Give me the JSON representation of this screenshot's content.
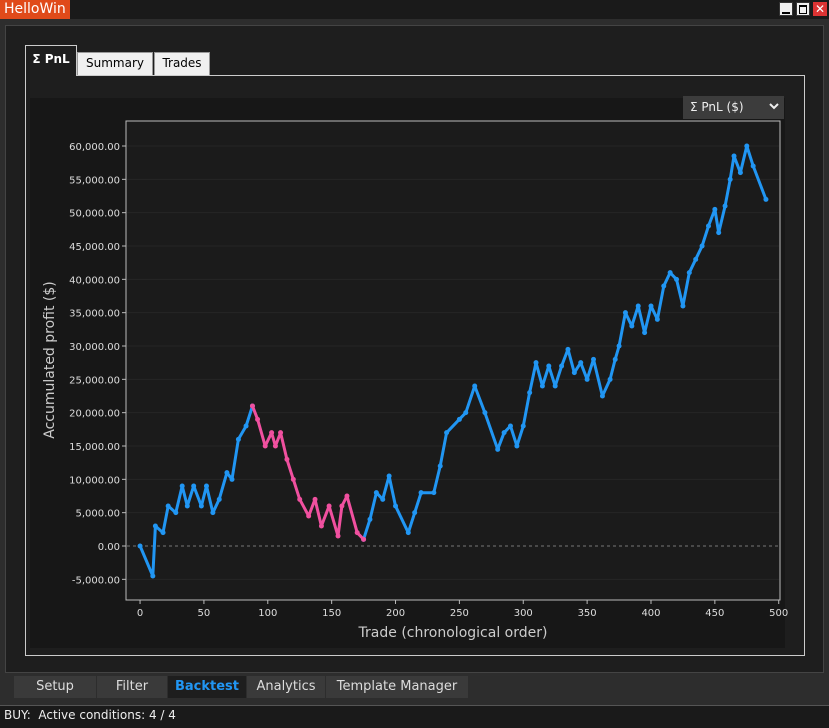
{
  "window": {
    "title": "HelloWin"
  },
  "tabs": [
    "Σ PnL",
    "Summary",
    "Trades"
  ],
  "dropdown": "Σ PnL ($)",
  "bottom_tabs": [
    "Setup",
    "Filter",
    "Backtest",
    "Analytics",
    "Template Manager"
  ],
  "status": "BUY:  Active conditions: 4 / 4",
  "chart_data": {
    "type": "line",
    "x_label": "Trade (chronological order)",
    "y_label": "Accumulated profit ($)",
    "x": [
      0,
      10,
      12,
      18,
      22,
      28,
      33,
      37,
      42,
      48,
      52,
      57,
      62,
      68,
      72,
      77,
      83,
      88,
      92,
      98,
      103,
      106,
      110,
      115,
      120,
      125,
      132,
      137,
      142,
      148,
      155,
      158,
      162,
      170,
      175,
      180,
      185,
      190,
      195,
      200,
      210,
      215,
      220,
      230,
      235,
      240,
      250,
      255,
      262,
      270,
      280,
      285,
      290,
      295,
      300,
      305,
      310,
      315,
      320,
      325,
      330,
      335,
      340,
      345,
      350,
      355,
      362,
      368,
      372,
      375,
      380,
      385,
      390,
      395,
      400,
      405,
      410,
      415,
      420,
      425,
      430,
      435,
      440,
      445,
      450,
      453,
      458,
      462,
      465,
      470,
      475,
      480,
      490
    ],
    "series": [
      {
        "color": "#2196f3",
        "values": [
          0,
          -4500,
          3000,
          2000,
          6000,
          5000,
          9000,
          6000,
          9000,
          6000,
          9000,
          5000,
          7000,
          11000,
          10000,
          16000,
          18000,
          21000,
          null,
          null,
          null,
          null,
          null,
          null,
          null,
          null,
          null,
          null,
          null,
          null,
          null,
          null,
          null,
          null,
          1000,
          4000,
          8000,
          7000,
          10500,
          6000,
          2000,
          5000,
          8000,
          8000,
          12000,
          17000,
          19000,
          20000,
          24000,
          20000,
          14500,
          17000,
          18000,
          15000,
          18000,
          23000,
          27500,
          24000,
          27000,
          24000,
          27000,
          29500,
          26000,
          27500,
          25000,
          28000,
          22500,
          25000,
          28000,
          30000,
          35000,
          33000,
          36000,
          32000,
          36000,
          34000,
          39000,
          41000,
          40000,
          36000,
          41000,
          43000,
          45000,
          48000,
          50500,
          47000,
          51000,
          55000,
          58500,
          56000,
          60000,
          57000,
          52000
        ]
      },
      {
        "color": "#f0509f",
        "values": [
          null,
          null,
          null,
          null,
          null,
          null,
          null,
          null,
          null,
          null,
          null,
          null,
          null,
          null,
          null,
          null,
          null,
          21000,
          19000,
          15000,
          17000,
          15000,
          17000,
          13000,
          10000,
          7000,
          4500,
          7000,
          3000,
          6000,
          1500,
          6000,
          7500,
          2000,
          1000,
          null,
          null,
          null,
          null,
          null,
          null,
          null,
          null,
          null,
          null,
          null,
          null,
          null,
          null,
          null,
          null,
          null,
          null,
          null,
          null,
          null,
          null,
          null,
          null,
          null,
          null,
          null,
          null,
          null,
          null,
          null,
          null,
          null,
          null,
          null,
          null,
          null,
          null,
          null,
          null,
          null,
          null,
          null,
          null,
          null,
          null,
          null,
          null,
          null,
          null,
          null,
          null,
          null,
          null,
          null,
          null,
          null,
          null
        ]
      }
    ],
    "xlim": [
      -11,
      501
    ],
    "ylim": [
      -8100,
      63750
    ],
    "xticks": [
      0,
      50,
      100,
      150,
      200,
      250,
      300,
      350,
      400,
      450,
      500
    ],
    "yticks": [
      {
        "value": -5000,
        "label": "-5,000.00"
      },
      {
        "value": 0,
        "label": "0.00"
      },
      {
        "value": 5000,
        "label": "5,000.00"
      },
      {
        "value": 10000,
        "label": "10,000.00"
      },
      {
        "value": 15000,
        "label": "15,000.00"
      },
      {
        "value": 20000,
        "label": "20,000.00"
      },
      {
        "value": 25000,
        "label": "25,000.00"
      },
      {
        "value": 30000,
        "label": "30,000.00"
      },
      {
        "value": 35000,
        "label": "35,000.00"
      },
      {
        "value": 40000,
        "label": "40,000.00"
      },
      {
        "value": 45000,
        "label": "45,000.00"
      },
      {
        "value": 50000,
        "label": "50,000.00"
      },
      {
        "value": 55000,
        "label": "55,000.00"
      },
      {
        "value": 60000,
        "label": "60,000.00"
      }
    ],
    "grid": true
  }
}
